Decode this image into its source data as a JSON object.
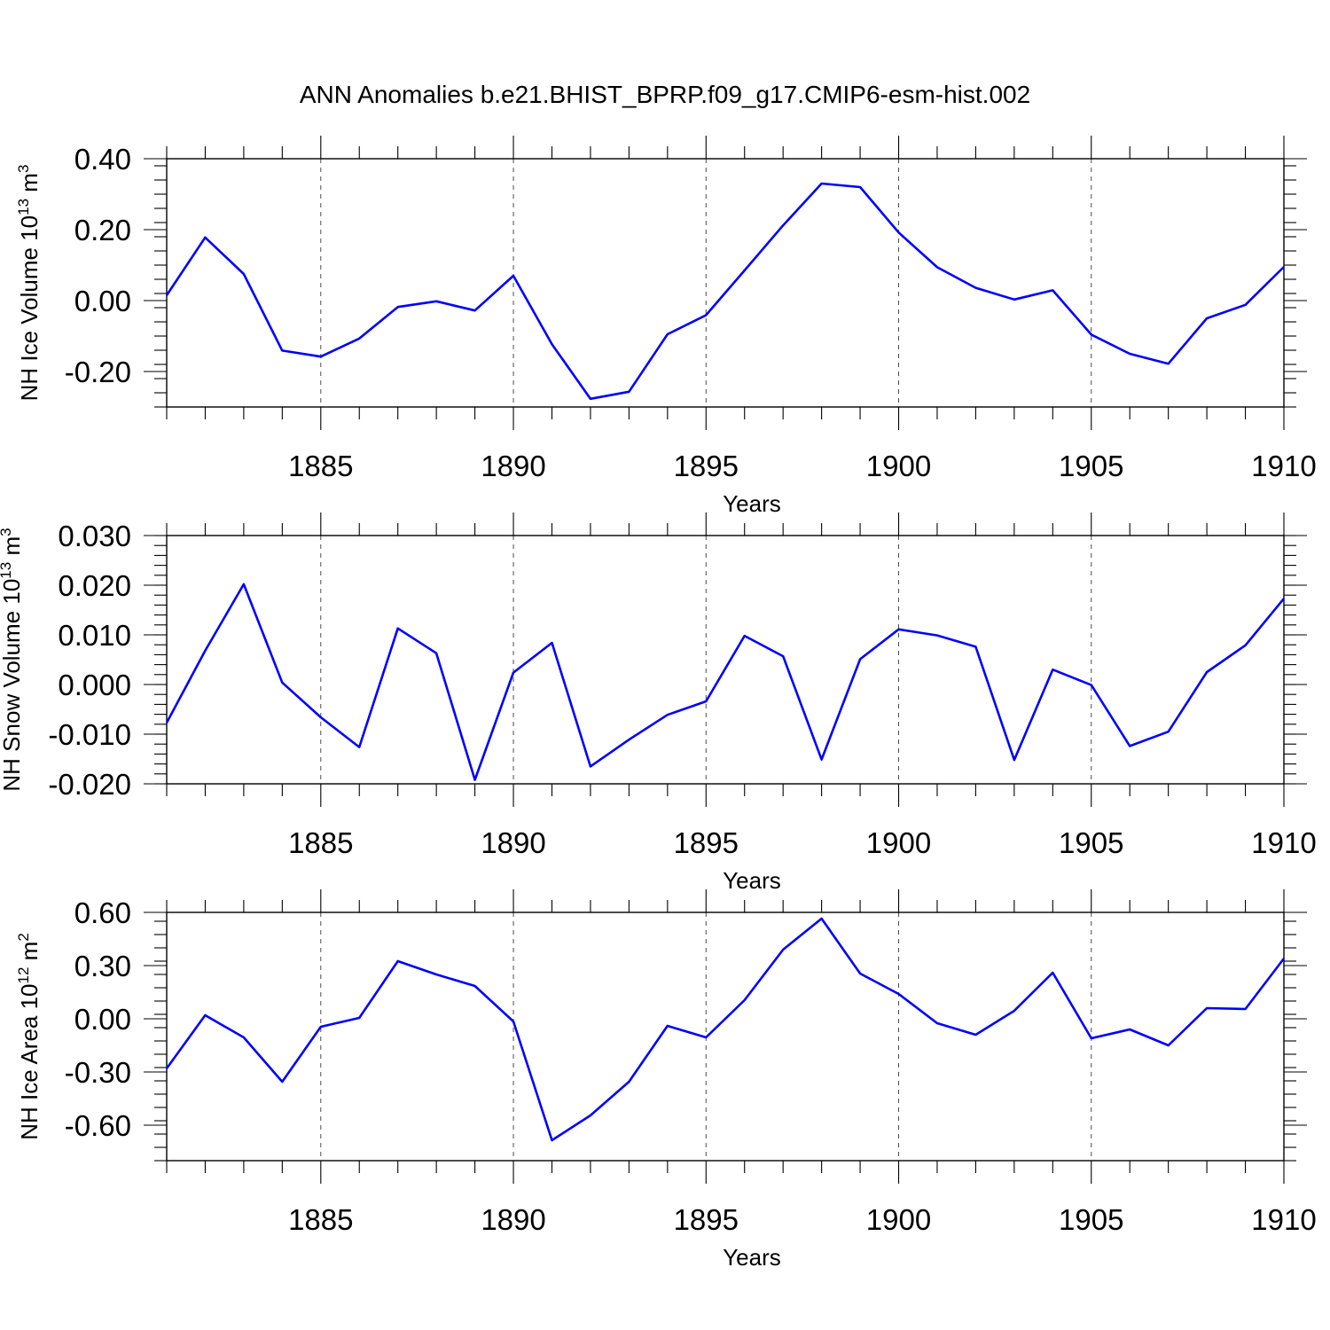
{
  "title": "ANN Anomalies b.e21.BHIST_BPRP.f09_g17.CMIP6-esm-hist.002",
  "colors": {
    "line": "#0000ff",
    "axis": "#000000"
  },
  "chart_data": [
    {
      "type": "line",
      "id": "ice-volume",
      "ylabel": "NH Ice Volume",
      "ylabel_unit": "10",
      "ylabel_exp": "13",
      "ylabel_tail": "m",
      "ylabel_tail_exp": "3",
      "xlabel": "Years",
      "xlim": [
        1881,
        1910
      ],
      "ylim": [
        -0.3,
        0.4
      ],
      "yticks": [
        -0.2,
        0.0,
        0.2,
        0.4
      ],
      "ytick_labels": [
        "-0.20",
        "0.00",
        "0.20",
        "0.40"
      ],
      "yminor_step": 0.04,
      "xticks": [
        1885,
        1890,
        1895,
        1900,
        1905,
        1910
      ],
      "xtick_labels": [
        "1885",
        "1890",
        "1895",
        "1900",
        "1905",
        "1910"
      ],
      "grid_x": [
        1885,
        1890,
        1895,
        1900,
        1905
      ],
      "x": [
        1881,
        1882,
        1883,
        1884,
        1885,
        1886,
        1887,
        1888,
        1889,
        1890,
        1891,
        1892,
        1893,
        1894,
        1895,
        1896,
        1897,
        1898,
        1899,
        1900,
        1901,
        1902,
        1903,
        1904,
        1905,
        1906,
        1907,
        1908,
        1909,
        1910
      ],
      "values": [
        0.015,
        0.178,
        0.075,
        -0.141,
        -0.158,
        -0.107,
        -0.018,
        -0.002,
        -0.028,
        0.07,
        -0.123,
        -0.277,
        -0.257,
        -0.095,
        -0.041,
        0.085,
        0.212,
        0.33,
        0.32,
        0.192,
        0.094,
        0.036,
        0.003,
        0.029,
        -0.096,
        -0.15,
        -0.178,
        -0.05,
        -0.012,
        0.095
      ]
    },
    {
      "type": "line",
      "id": "snow-volume",
      "ylabel": "NH Snow Volume",
      "ylabel_unit": "10",
      "ylabel_exp": "13",
      "ylabel_tail": "m",
      "ylabel_tail_exp": "3",
      "xlabel": "Years",
      "xlim": [
        1881,
        1910
      ],
      "ylim": [
        -0.02,
        0.03
      ],
      "yticks": [
        -0.02,
        -0.01,
        0.0,
        0.01,
        0.02,
        0.03
      ],
      "ytick_labels": [
        "-0.020",
        "-0.010",
        "0.000",
        "0.010",
        "0.020",
        "0.030"
      ],
      "yminor_step": 0.002,
      "xticks": [
        1885,
        1890,
        1895,
        1900,
        1905,
        1910
      ],
      "xtick_labels": [
        "1885",
        "1890",
        "1895",
        "1900",
        "1905",
        "1910"
      ],
      "grid_x": [
        1885,
        1890,
        1895,
        1900,
        1905
      ],
      "x": [
        1881,
        1882,
        1883,
        1884,
        1885,
        1886,
        1887,
        1888,
        1889,
        1890,
        1891,
        1892,
        1893,
        1894,
        1895,
        1896,
        1897,
        1898,
        1899,
        1900,
        1901,
        1902,
        1903,
        1904,
        1905,
        1906,
        1907,
        1908,
        1909,
        1910
      ],
      "values": [
        -0.0077,
        0.0068,
        0.0202,
        0.0004,
        -0.0066,
        -0.0126,
        0.0113,
        0.0063,
        -0.0192,
        0.0024,
        0.0084,
        -0.0165,
        -0.0111,
        -0.0061,
        -0.0034,
        0.0098,
        0.0057,
        -0.0151,
        0.0051,
        0.0111,
        0.0099,
        0.0076,
        -0.0152,
        0.003,
        -0.0001,
        -0.0124,
        -0.0095,
        0.0025,
        0.0079,
        0.0173
      ]
    },
    {
      "type": "line",
      "id": "ice-area",
      "ylabel": "NH Ice Area",
      "ylabel_unit": "10",
      "ylabel_exp": "12",
      "ylabel_tail": "m",
      "ylabel_tail_exp": "2",
      "xlabel": "Years",
      "xlim": [
        1881,
        1910
      ],
      "ylim": [
        -0.8,
        0.6
      ],
      "yticks": [
        -0.6,
        -0.3,
        0.0,
        0.3,
        0.6
      ],
      "ytick_labels": [
        "-0.60",
        "-0.30",
        "0.00",
        "0.30",
        "0.60"
      ],
      "yminor_step": 0.075,
      "xticks": [
        1885,
        1890,
        1895,
        1900,
        1905,
        1910
      ],
      "xtick_labels": [
        "1885",
        "1890",
        "1895",
        "1900",
        "1905",
        "1910"
      ],
      "grid_x": [
        1885,
        1890,
        1895,
        1900,
        1905
      ],
      "x": [
        1881,
        1882,
        1883,
        1884,
        1885,
        1886,
        1887,
        1888,
        1889,
        1890,
        1891,
        1892,
        1893,
        1894,
        1895,
        1896,
        1897,
        1898,
        1899,
        1900,
        1901,
        1902,
        1903,
        1904,
        1905,
        1906,
        1907,
        1908,
        1909,
        1910
      ],
      "values": [
        -0.28,
        0.02,
        -0.105,
        -0.355,
        -0.045,
        0.005,
        0.325,
        0.25,
        0.185,
        -0.015,
        -0.685,
        -0.545,
        -0.355,
        -0.04,
        -0.105,
        0.105,
        0.39,
        0.565,
        0.255,
        0.14,
        -0.025,
        -0.09,
        0.045,
        0.26,
        -0.11,
        -0.06,
        -0.15,
        0.06,
        0.055,
        0.34
      ]
    }
  ]
}
